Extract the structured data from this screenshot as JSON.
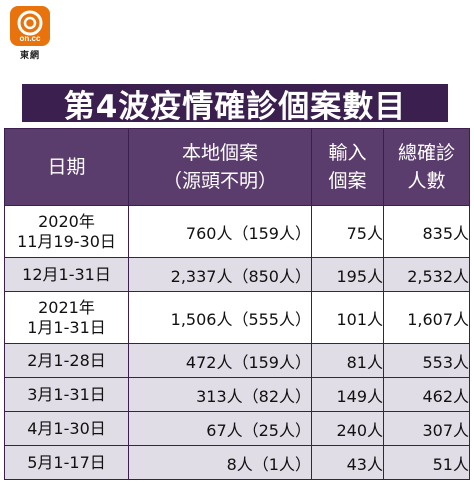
{
  "logo": {
    "mark": "on.cc",
    "sub": "東網"
  },
  "title": "第4波疫情確診個案數目",
  "chart_data": {
    "type": "table",
    "columns": [
      {
        "lines": [
          "日期"
        ]
      },
      {
        "lines": [
          "本地個案",
          "（源頭不明）"
        ]
      },
      {
        "lines": [
          "輸入",
          "個案"
        ]
      },
      {
        "lines": [
          "總確診",
          "人數"
        ]
      }
    ],
    "rows": [
      {
        "date": [
          "2020年",
          "11月19-30日"
        ],
        "local": "760人（159人）",
        "imported": "75人",
        "total": "835人"
      },
      {
        "date": [
          "12月1-31日"
        ],
        "local": "2,337人（850人）",
        "imported": "195人",
        "total": "2,532人"
      },
      {
        "date": [
          "2021年",
          "1月1-31日"
        ],
        "local": "1,506人（555人）",
        "imported": "101人",
        "total": "1,607人"
      },
      {
        "date": [
          "2月1-28日"
        ],
        "local": "472人（159人）",
        "imported": "81人",
        "total": "553人"
      },
      {
        "date": [
          "3月1-31日"
        ],
        "local": "313人（82人）",
        "imported": "149人",
        "total": "462人"
      },
      {
        "date": [
          "4月1-30日"
        ],
        "local": "67人（25人）",
        "imported": "240人",
        "total": "307人"
      },
      {
        "date": [
          "5月1-17日"
        ],
        "local": "8人（1人）",
        "imported": "43人",
        "total": "51人"
      }
    ],
    "colors": {
      "title_bg": "#3a1f4f",
      "header_bg": "#5b3d6d",
      "stripe": "#e1dde6",
      "logo": "#e8730c"
    }
  }
}
